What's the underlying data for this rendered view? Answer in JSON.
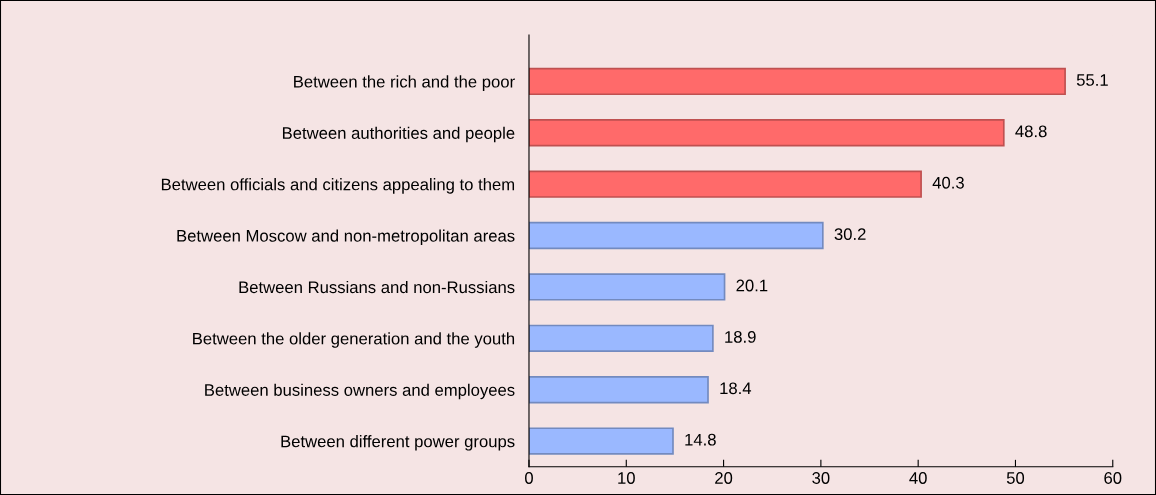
{
  "chart_data": {
    "type": "bar",
    "orientation": "horizontal",
    "categories": [
      "Between the rich and the poor",
      "Between authorities and people",
      "Between officials and citizens appealing to them",
      "Between Moscow and non-metropolitan areas",
      "Between Russians and non-Russians",
      "Between the older generation and the youth",
      "Between business owners and employees",
      "Between different power groups"
    ],
    "values": [
      55.1,
      48.8,
      40.3,
      30.2,
      20.1,
      18.9,
      18.4,
      14.8
    ],
    "colors": [
      "#ff6a6a",
      "#ff6a6a",
      "#ff6a6a",
      "#9ab8ff",
      "#9ab8ff",
      "#9ab8ff",
      "#9ab8ff",
      "#9ab8ff"
    ],
    "xlim": [
      0,
      60
    ],
    "xticks": [
      0,
      10,
      20,
      30,
      40,
      50,
      60
    ],
    "data_labels": true,
    "grid": false,
    "legend": false
  }
}
